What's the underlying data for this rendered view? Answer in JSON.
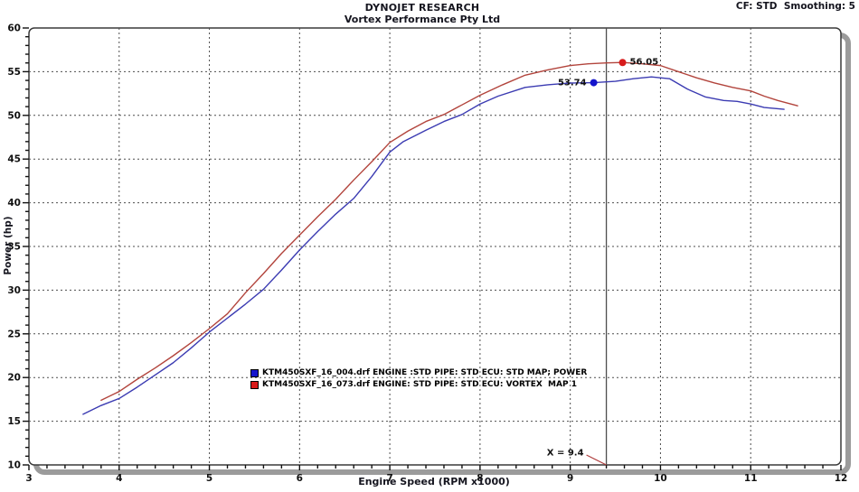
{
  "header": {
    "title": "DYNOJET RESEARCH",
    "subtitle": "Vortex Performance Pty Ltd",
    "settings": "CF: STD  Smoothing: 5"
  },
  "chart_data": {
    "type": "line",
    "title": "DYNOJET RESEARCH",
    "subtitle": "Vortex Performance Pty Ltd",
    "xlabel": "Engine Speed (RPM x1000)",
    "ylabel": "Power (hp)",
    "xlim": [
      3,
      12
    ],
    "ylim": [
      10,
      60
    ],
    "x_ticks": [
      3,
      4,
      5,
      6,
      7,
      8,
      9,
      10,
      11,
      12
    ],
    "y_ticks": [
      10,
      15,
      20,
      25,
      30,
      35,
      40,
      45,
      50,
      55,
      60
    ],
    "x_minor_step": 0.2,
    "y_minor_step": 1,
    "grid": "dashed",
    "grid_color": "#4d4d4d",
    "cursor": {
      "x": 9.4,
      "label": "X = 9.4",
      "line_color": "#4d4d4d",
      "pointer_color": "#b04040"
    },
    "legend_position": "inside-bottom-center",
    "series": [
      {
        "name": "KTM450SXF_16_004.drf ENGINE :STD PIPE: STD ECU: STD MAP; POWER",
        "color": "#3b3bb2",
        "marker_color": "#1414cc",
        "peak": {
          "x": 9.26,
          "y": 53.74,
          "label": "53.74",
          "label_side": "left"
        },
        "points": [
          [
            3.6,
            15.8
          ],
          [
            3.8,
            16.8
          ],
          [
            4.0,
            17.6
          ],
          [
            4.2,
            18.9
          ],
          [
            4.4,
            20.3
          ],
          [
            4.6,
            21.7
          ],
          [
            4.8,
            23.4
          ],
          [
            5.0,
            25.2
          ],
          [
            5.2,
            26.8
          ],
          [
            5.4,
            28.4
          ],
          [
            5.6,
            30.1
          ],
          [
            5.8,
            32.3
          ],
          [
            6.0,
            34.6
          ],
          [
            6.2,
            36.7
          ],
          [
            6.4,
            38.7
          ],
          [
            6.6,
            40.5
          ],
          [
            6.8,
            43.0
          ],
          [
            7.0,
            45.8
          ],
          [
            7.15,
            47.0
          ],
          [
            7.4,
            48.3
          ],
          [
            7.6,
            49.3
          ],
          [
            7.8,
            50.1
          ],
          [
            8.0,
            51.3
          ],
          [
            8.2,
            52.2
          ],
          [
            8.5,
            53.2
          ],
          [
            8.75,
            53.5
          ],
          [
            9.0,
            53.7
          ],
          [
            9.26,
            53.74
          ],
          [
            9.5,
            53.9
          ],
          [
            9.7,
            54.2
          ],
          [
            9.9,
            54.4
          ],
          [
            10.1,
            54.2
          ],
          [
            10.3,
            53.0
          ],
          [
            10.5,
            52.1
          ],
          [
            10.7,
            51.7
          ],
          [
            10.85,
            51.6
          ],
          [
            11.0,
            51.3
          ],
          [
            11.15,
            50.9
          ],
          [
            11.37,
            50.7
          ]
        ]
      },
      {
        "name": "KTM450SXF_16_073.drf ENGINE: STD PIPE: STD ECU: VORTEX  MAP 1",
        "color": "#b2443c",
        "marker_color": "#d81b1b",
        "peak": {
          "x": 9.58,
          "y": 56.05,
          "label": "56.05",
          "label_side": "right"
        },
        "points": [
          [
            3.8,
            17.4
          ],
          [
            4.0,
            18.4
          ],
          [
            4.2,
            19.8
          ],
          [
            4.4,
            21.1
          ],
          [
            4.6,
            22.5
          ],
          [
            4.8,
            24.0
          ],
          [
            5.0,
            25.6
          ],
          [
            5.2,
            27.3
          ],
          [
            5.4,
            29.7
          ],
          [
            5.6,
            31.9
          ],
          [
            5.8,
            34.2
          ],
          [
            6.0,
            36.3
          ],
          [
            6.2,
            38.4
          ],
          [
            6.4,
            40.4
          ],
          [
            6.6,
            42.6
          ],
          [
            6.8,
            44.7
          ],
          [
            7.0,
            46.9
          ],
          [
            7.2,
            48.2
          ],
          [
            7.4,
            49.3
          ],
          [
            7.6,
            50.1
          ],
          [
            7.8,
            51.2
          ],
          [
            8.0,
            52.3
          ],
          [
            8.25,
            53.5
          ],
          [
            8.5,
            54.6
          ],
          [
            8.75,
            55.2
          ],
          [
            9.0,
            55.7
          ],
          [
            9.2,
            55.9
          ],
          [
            9.4,
            56.0
          ],
          [
            9.58,
            56.05
          ],
          [
            9.8,
            55.9
          ],
          [
            10.0,
            55.7
          ],
          [
            10.2,
            55.0
          ],
          [
            10.4,
            54.3
          ],
          [
            10.6,
            53.7
          ],
          [
            10.8,
            53.2
          ],
          [
            11.0,
            52.8
          ],
          [
            11.15,
            52.2
          ],
          [
            11.3,
            51.7
          ],
          [
            11.52,
            51.1
          ]
        ]
      }
    ]
  }
}
